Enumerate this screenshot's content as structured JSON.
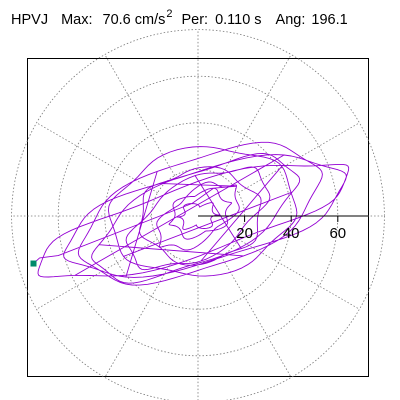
{
  "header": {
    "station": "HPVJ",
    "max_label": "Max:",
    "max_value": "70.6",
    "max_unit": "cm/s",
    "max_unit_exp": "2",
    "per_label": "Per:",
    "per_value": "0.110",
    "per_unit": "s",
    "ang_label": "Ang:",
    "ang_value": "196.1"
  },
  "chart_data": {
    "type": "polar-particle-motion",
    "title": "HPVJ  Max: 70.6 cm/s2  Per: 0.110 s  Ang: 196.1",
    "radial_axis": {
      "ticks": [
        20,
        40,
        60
      ],
      "tick_labels": [
        "20",
        "40",
        "60"
      ],
      "range": [
        0,
        70.6
      ],
      "rings": [
        20,
        40,
        60,
        80
      ],
      "spokes_deg": [
        0,
        30,
        60,
        90,
        120,
        150,
        180,
        210,
        240,
        270,
        300,
        330
      ],
      "grid": true,
      "grid_style": "dotted"
    },
    "max_amplitude": 70.6,
    "max_angle_deg": 196.1,
    "period_s": 0.11,
    "trace_color": "#9400D3",
    "end_marker_color": "#008B6B",
    "trace_ellipses": [
      {
        "a": 70,
        "b": 15,
        "rot": 17,
        "cx": -2,
        "cy": -2,
        "turns": 1.6
      },
      {
        "a": 62,
        "b": 20,
        "rot": 15,
        "cx": 3,
        "cy": 0,
        "turns": 1.5
      },
      {
        "a": 54,
        "b": 24,
        "rot": 20,
        "cx": 1,
        "cy": 1,
        "turns": 1.5
      },
      {
        "a": 47,
        "b": 19,
        "rot": 25,
        "cx": -1,
        "cy": -1,
        "turns": 1.5
      },
      {
        "a": 40,
        "b": 27,
        "rot": 10,
        "cx": 2,
        "cy": 2,
        "turns": 1.5
      },
      {
        "a": 33,
        "b": 16,
        "rot": 30,
        "cx": 0,
        "cy": -1,
        "turns": 1.5
      },
      {
        "a": 26,
        "b": 20,
        "rot": 5,
        "cx": 1,
        "cy": 0,
        "turns": 1.5
      },
      {
        "a": 20,
        "b": 10,
        "rot": 35,
        "cx": 0,
        "cy": 0,
        "turns": 2
      },
      {
        "a": 13,
        "b": 9,
        "rot": 20,
        "cx": 1,
        "cy": 1,
        "turns": 2
      },
      {
        "a": 8,
        "b": 5,
        "rot": 10,
        "cx": 0,
        "cy": 0,
        "turns": 3
      }
    ],
    "end_point": [
      -70.6,
      -20.4
    ]
  }
}
